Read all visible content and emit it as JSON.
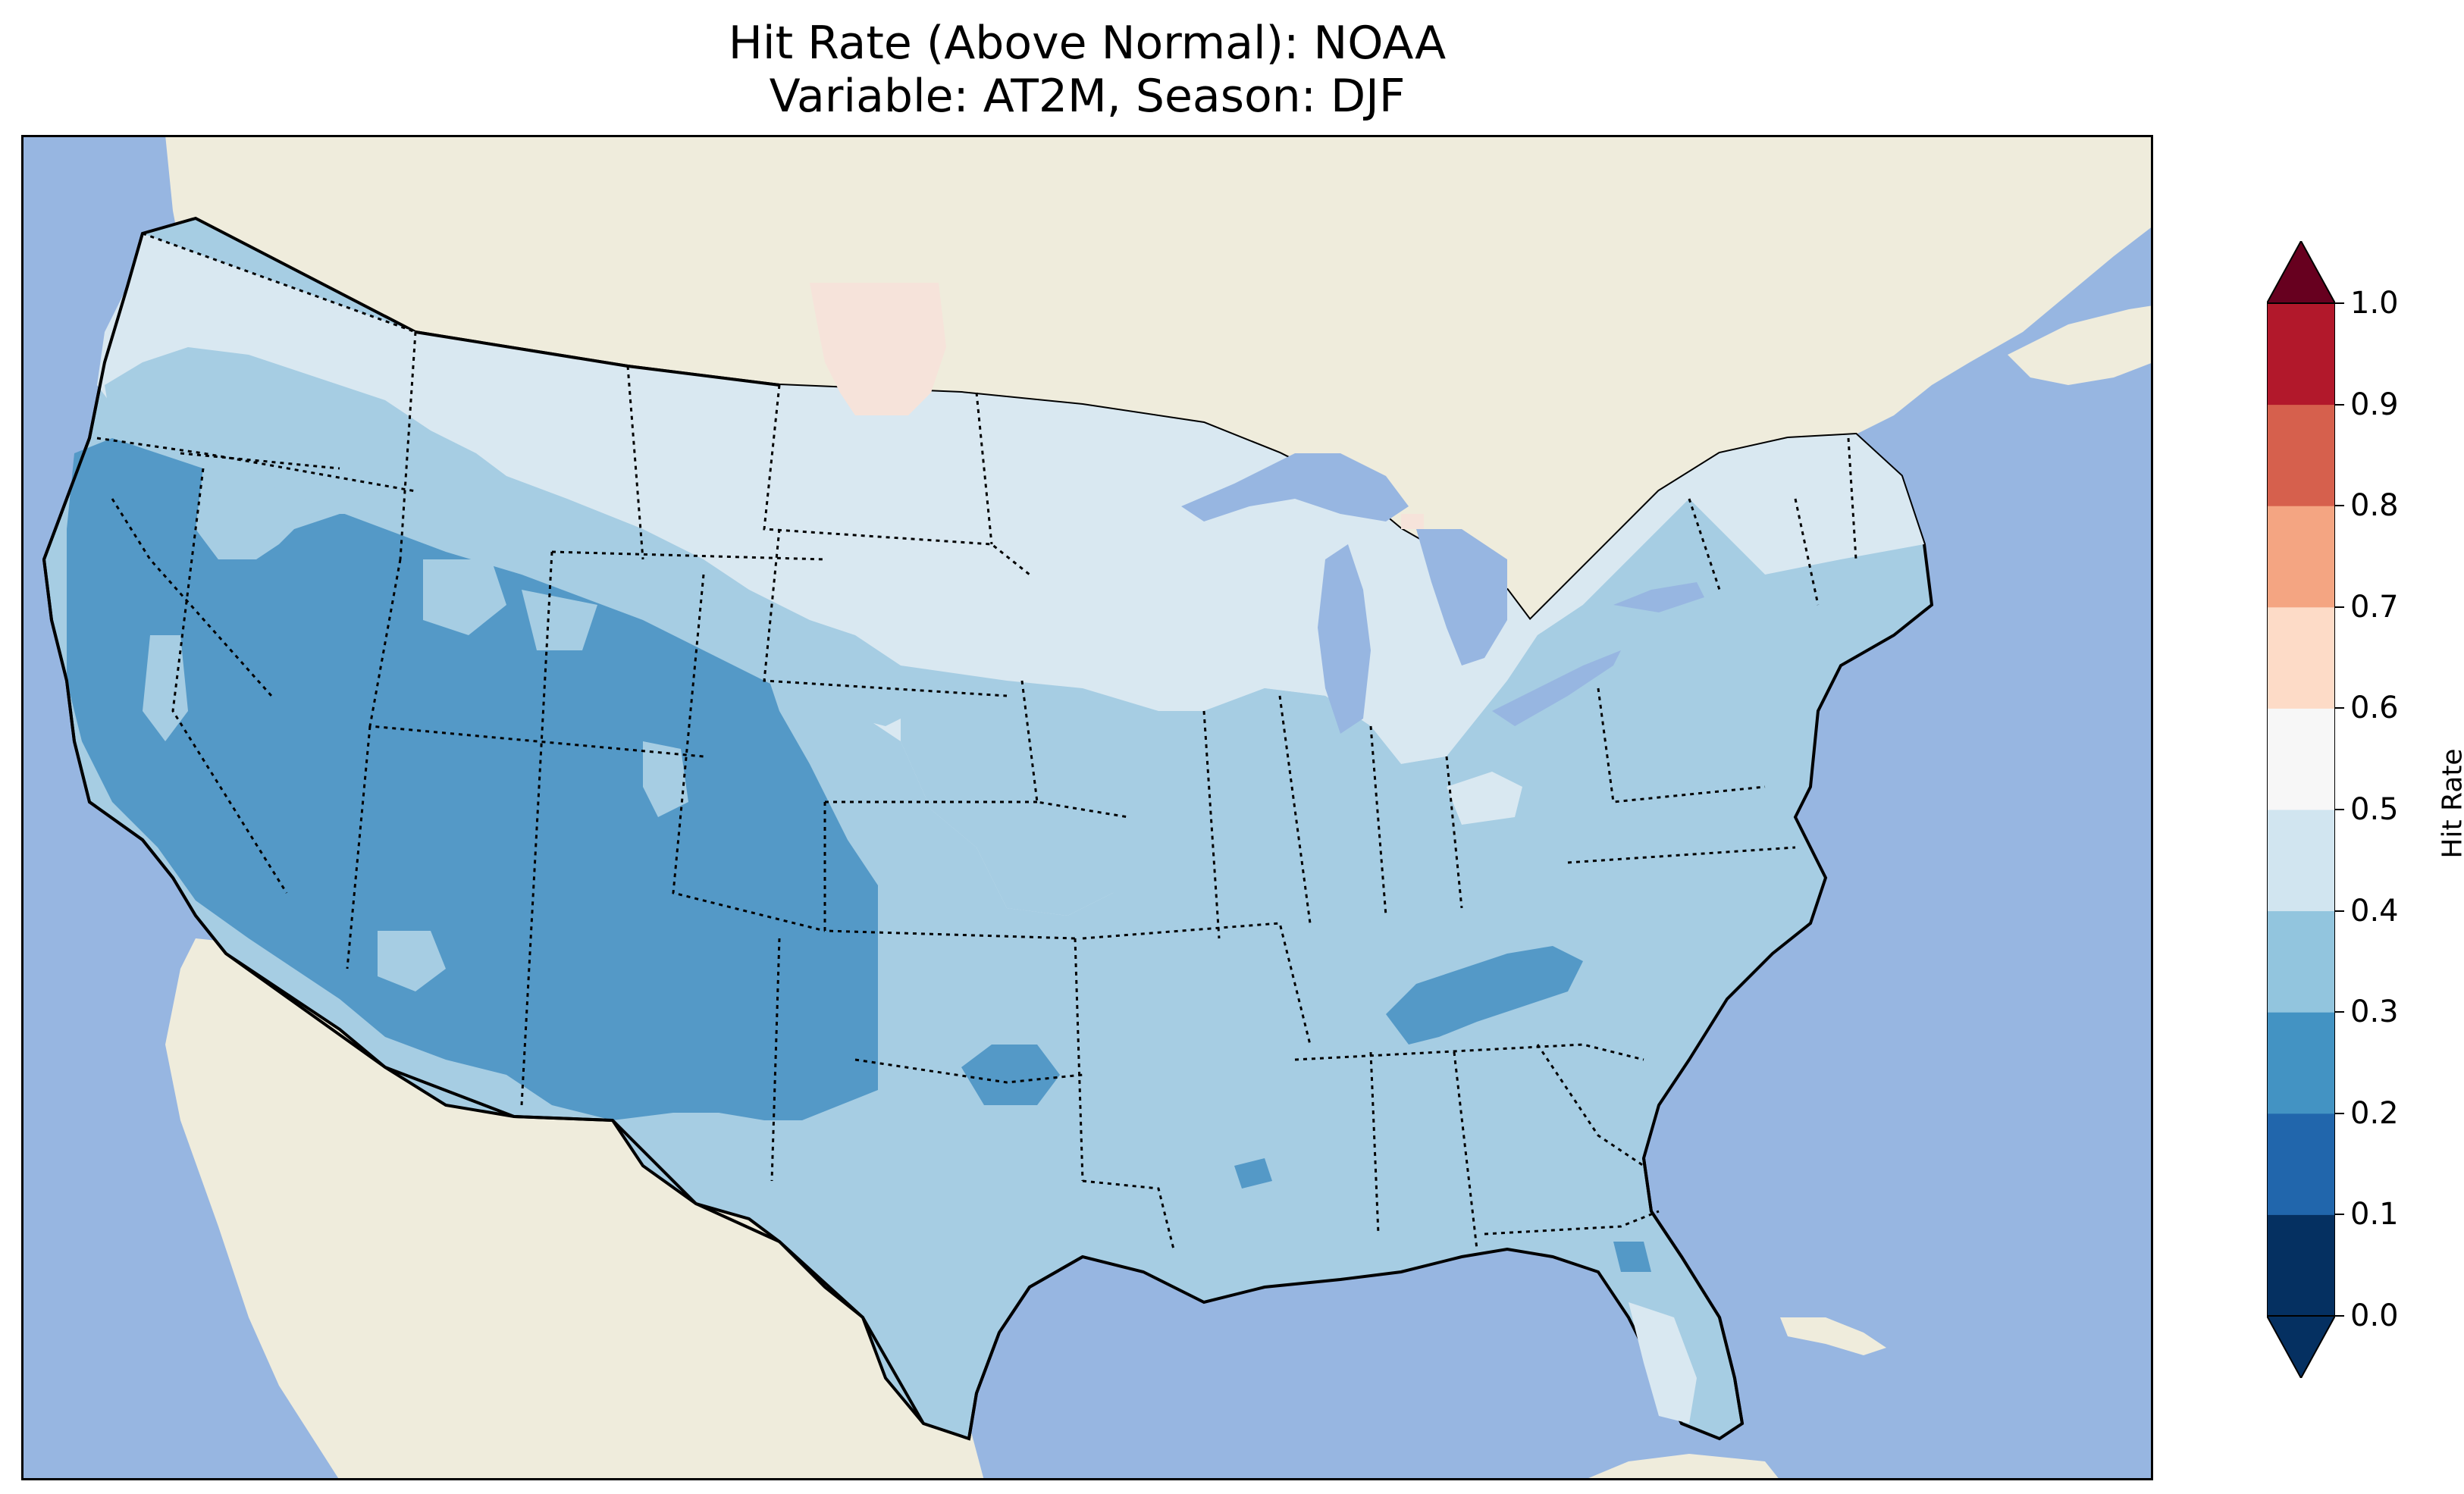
{
  "map": {
    "title_line1": "Hit Rate (Above Normal): NOAA",
    "title_line2": "Variable: AT2M, Season: DJF",
    "region": "Contiguous United States",
    "colors": {
      "ocean": "#97b6e1",
      "land": "#efecdc",
      "borders": "#000000"
    }
  },
  "colorbar": {
    "label": "Hit Rate",
    "ticks": [
      "0.0",
      "0.1",
      "0.2",
      "0.3",
      "0.4",
      "0.5",
      "0.6",
      "0.7",
      "0.8",
      "0.9",
      "1.0"
    ],
    "colors": [
      "#053061",
      "#2166ac",
      "#4393c3",
      "#92c5de",
      "#d1e5f0",
      "#f7f7f7",
      "#fddbc7",
      "#f4a582",
      "#d6604d",
      "#b2182b",
      "#67001f"
    ],
    "extend": "both"
  },
  "zones": [
    {
      "name": "California / Great Basin / Southwest",
      "range": "0.2–0.3"
    },
    {
      "name": "Pacific Northwest / Northern Rockies",
      "range": "0.3–0.4"
    },
    {
      "name": "Northern Plains / Upper Midwest / New England",
      "range": "0.4–0.5"
    },
    {
      "name": "Northwest North Dakota",
      "range": "0.5–0.6"
    },
    {
      "name": "Central Plains / Texas / Southeast / Mid-Atlantic",
      "range": "0.3–0.4"
    },
    {
      "name": "Tennessee Valley / Central Oklahoma",
      "range": "0.2–0.3"
    }
  ]
}
